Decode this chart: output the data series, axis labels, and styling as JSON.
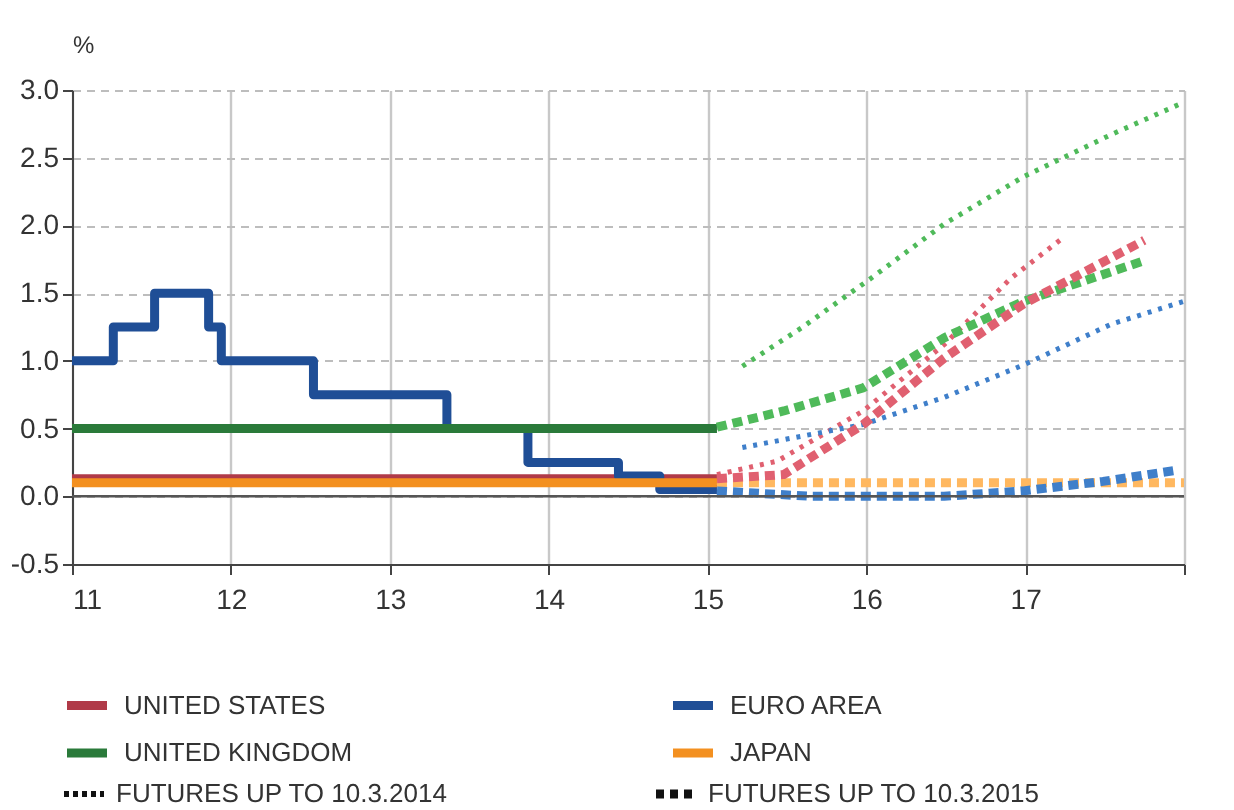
{
  "chart_data": {
    "type": "step",
    "ylabel": "%",
    "xlim": [
      11,
      18
    ],
    "ylim": [
      -0.5,
      3.0
    ],
    "xticks": [
      11,
      12,
      13,
      14,
      15,
      16,
      17,
      {
        "value": 18,
        "label": null
      }
    ],
    "yticks": [
      {
        "value": -0.5,
        "label": "-0.5"
      },
      {
        "value": 0,
        "label": "0.0"
      },
      {
        "value": 0.5,
        "label": "0.5"
      },
      {
        "value": 1,
        "label": "1.0"
      },
      {
        "value": 1.5,
        "label": "1.5"
      },
      {
        "value": 2,
        "label": "2.0"
      },
      {
        "value": 2.5,
        "label": "2.5"
      },
      {
        "value": 3,
        "label": "3.0"
      }
    ],
    "grid": true,
    "legend": "bottom",
    "ref_lines": [
      {
        "axis": "y",
        "value": 0,
        "color": "#555555"
      }
    ],
    "annotations": [
      "FUTURES UP TO 10.3.2014",
      "FUTURES UP TO 10.3.2015"
    ],
    "series": [
      {
        "name": "UNITED STATES",
        "color": "#b03a48",
        "x": [
          11,
          15.06
        ],
        "values": [
          0.13,
          0.13
        ]
      },
      {
        "name": "EURO AREA",
        "color": "#1f4e96",
        "x": [
          11,
          11.26,
          11.52,
          11.86,
          11.94,
          12.52,
          13.36,
          13.87,
          14.44,
          14.7,
          15.06
        ],
        "values": [
          1.0,
          1.25,
          1.5,
          1.25,
          1.0,
          0.75,
          0.5,
          0.25,
          0.15,
          0.05,
          0.05
        ]
      },
      {
        "name": "UNITED KINGDOM",
        "color": "#2a7a3a",
        "x": [
          11,
          15.06
        ],
        "values": [
          0.5,
          0.5
        ]
      },
      {
        "name": "JAPAN",
        "color": "#f39020",
        "x": [
          11,
          15.06
        ],
        "values": [
          0.1,
          0.1
        ]
      },
      {
        "type": "line",
        "line_style": "dotted",
        "color": "#4fba5a",
        "x": [
          15.22,
          15.6,
          16.03,
          16.49,
          16.99,
          17.54,
          18.0
        ],
        "values": [
          0.96,
          1.25,
          1.61,
          2.01,
          2.36,
          2.67,
          2.91
        ]
      },
      {
        "type": "line",
        "line_style": "dotted",
        "color": "#e06070",
        "x": [
          15.06,
          15.44,
          15.98,
          16.49,
          16.91,
          17.24
        ],
        "values": [
          0.16,
          0.26,
          0.63,
          1.12,
          1.61,
          1.91
        ]
      },
      {
        "type": "line",
        "line_style": "dotted",
        "color": "#3f7fca",
        "x": [
          15.22,
          15.98,
          16.49,
          16.99,
          17.54,
          18.0
        ],
        "values": [
          0.36,
          0.53,
          0.73,
          0.97,
          1.27,
          1.44
        ]
      },
      {
        "type": "line",
        "line_style": "dashed",
        "color": "#ffb860",
        "x": [
          15.06,
          18.0
        ],
        "values": [
          0.1,
          0.1
        ]
      },
      {
        "type": "line",
        "line_style": "dashed",
        "color": "#4fba5a",
        "x": [
          15.06,
          15.48,
          15.98,
          16.49,
          16.99,
          17.75
        ],
        "values": [
          0.51,
          0.63,
          0.8,
          1.17,
          1.44,
          1.74
        ]
      },
      {
        "type": "line",
        "line_style": "dashed",
        "color": "#e06070",
        "x": [
          15.06,
          15.48,
          15.98,
          16.49,
          16.99,
          17.75
        ],
        "values": [
          0.13,
          0.16,
          0.53,
          1.02,
          1.42,
          1.89
        ]
      },
      {
        "type": "line",
        "line_style": "dashed",
        "color": "#3f7fca",
        "x": [
          15.06,
          15.65,
          16.49,
          16.99,
          17.49,
          17.94
        ],
        "values": [
          0.04,
          0.0,
          0.0,
          0.04,
          0.11,
          0.19
        ]
      }
    ]
  }
}
